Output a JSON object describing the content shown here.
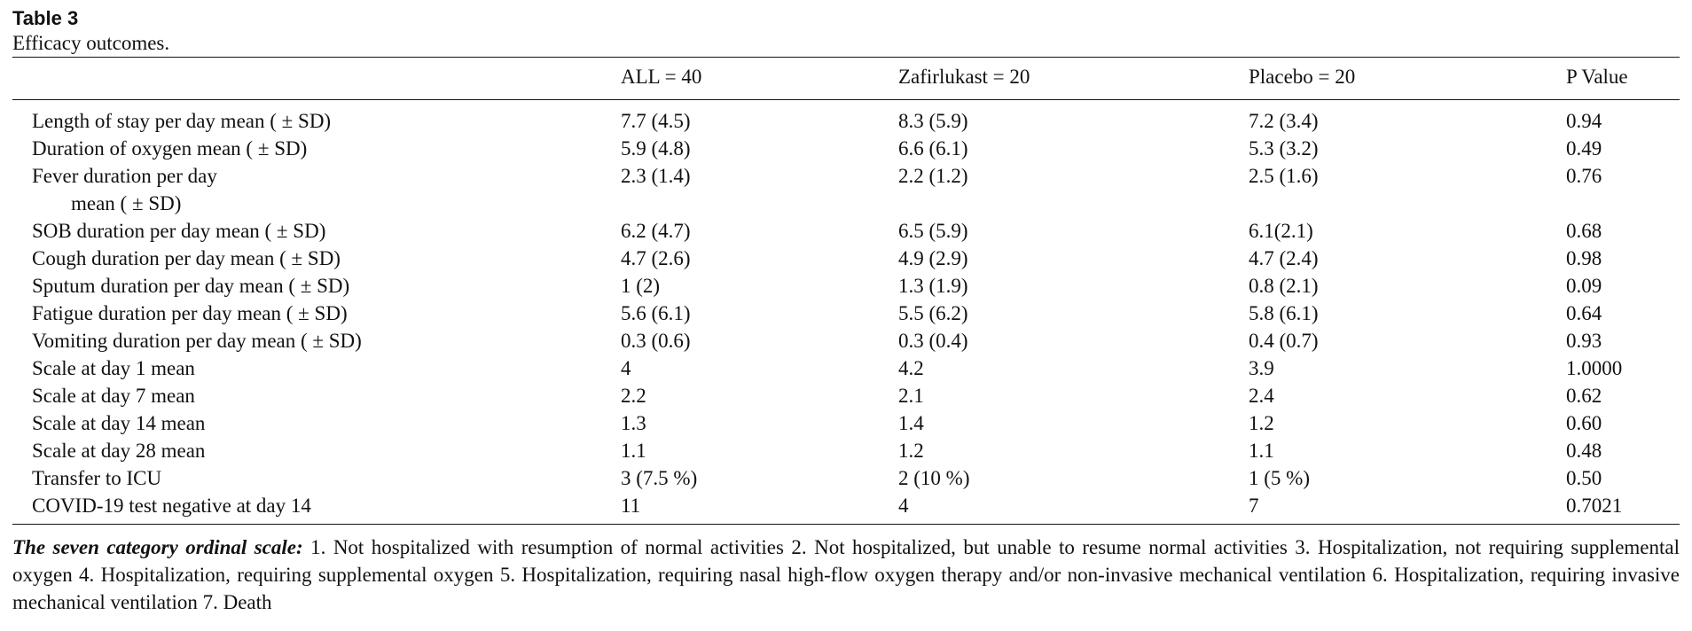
{
  "table": {
    "label": "Table 3",
    "caption": "Efficacy outcomes.",
    "columns": [
      "",
      "ALL = 40",
      "Zafirlukast = 20",
      "Placebo = 20",
      "P Value"
    ],
    "rows": [
      {
        "outcome": "Length of stay per day mean ( ± SD)",
        "all": "7.7 (4.5)",
        "zafirlukast": "8.3 (5.9)",
        "placebo": "7.2 (3.4)",
        "p": "0.94"
      },
      {
        "outcome": "Duration of oxygen mean ( ± SD)",
        "all": "5.9 (4.8)",
        "zafirlukast": "6.6 (6.1)",
        "placebo": "5.3 (3.2)",
        "p": "0.49"
      },
      {
        "outcome_line1": "Fever duration per day",
        "outcome_line2": "mean ( ± SD)",
        "all": "2.3 (1.4)",
        "zafirlukast": "2.2 (1.2)",
        "placebo": "2.5 (1.6)",
        "p": "0.76"
      },
      {
        "outcome": "SOB duration per day mean ( ± SD)",
        "all": "6.2 (4.7)",
        "zafirlukast": "6.5 (5.9)",
        "placebo": "6.1(2.1)",
        "p": "0.68"
      },
      {
        "outcome": "Cough duration per day mean ( ± SD)",
        "all": "4.7 (2.6)",
        "zafirlukast": "4.9 (2.9)",
        "placebo": "4.7 (2.4)",
        "p": "0.98"
      },
      {
        "outcome": "Sputum duration per day mean ( ± SD)",
        "all": "1 (2)",
        "zafirlukast": "1.3 (1.9)",
        "placebo": "0.8 (2.1)",
        "p": "0.09"
      },
      {
        "outcome": "Fatigue duration per day mean ( ± SD)",
        "all": "5.6 (6.1)",
        "zafirlukast": "5.5 (6.2)",
        "placebo": "5.8 (6.1)",
        "p": "0.64"
      },
      {
        "outcome": "Vomiting duration per day mean ( ± SD)",
        "all": "0.3 (0.6)",
        "zafirlukast": "0.3 (0.4)",
        "placebo": "0.4 (0.7)",
        "p": "0.93"
      },
      {
        "outcome": "Scale at day 1 mean",
        "all": "4",
        "zafirlukast": "4.2",
        "placebo": "3.9",
        "p": "1.0000"
      },
      {
        "outcome": "Scale at day 7 mean",
        "all": "2.2",
        "zafirlukast": "2.1",
        "placebo": "2.4",
        "p": "0.62"
      },
      {
        "outcome": "Scale at day 14 mean",
        "all": "1.3",
        "zafirlukast": "1.4",
        "placebo": "1.2",
        "p": "0.60"
      },
      {
        "outcome": "Scale at day 28 mean",
        "all": "1.1",
        "zafirlukast": "1.2",
        "placebo": "1.1",
        "p": "0.48"
      },
      {
        "outcome": "Transfer to ICU",
        "all": "3 (7.5 %)",
        "zafirlukast": "2 (10 %)",
        "placebo": "1 (5 %)",
        "p": "0.50"
      },
      {
        "outcome": "COVID-19 test negative at day 14",
        "all": "11",
        "zafirlukast": "4",
        "placebo": "7",
        "p": "0.7021"
      }
    ],
    "footnote": {
      "title": "The seven category ordinal scale:",
      "text": " 1. Not hospitalized with resumption of normal activities 2. Not hospitalized, but unable to resume normal activities 3. Hospitalization, not requiring supplemental oxygen 4. Hospitalization, requiring supplemental oxygen 5. Hospitalization, requiring nasal high-flow oxygen therapy and/or non-invasive mechanical ventilation 6. Hospitalization, requiring invasive mechanical ventilation 7. Death"
    }
  }
}
